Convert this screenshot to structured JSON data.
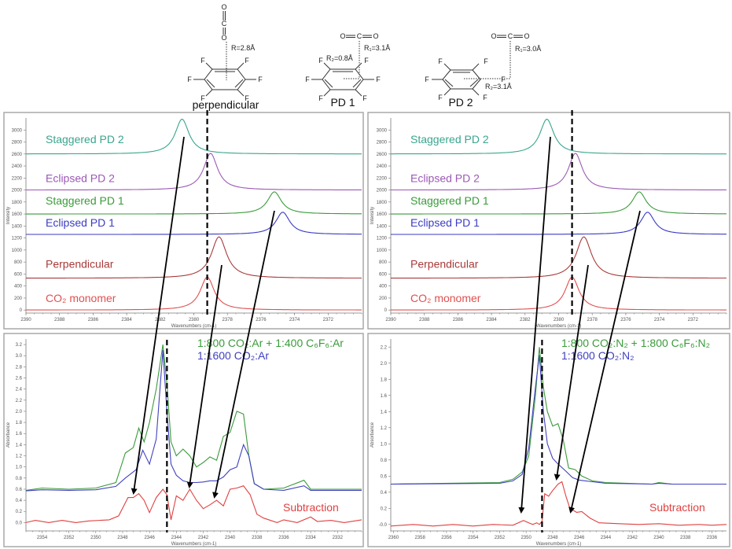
{
  "structures": [
    {
      "id": "perpendicular",
      "title": "perpendicular",
      "labels": [
        "R=2.8Å"
      ],
      "atoms": {
        "F": "F",
        "O": "O",
        "C": "C"
      }
    },
    {
      "id": "pd1",
      "title": "PD 1",
      "labels": [
        "R₁=3.1Å",
        "R₂=0.8Å"
      ],
      "atoms": {
        "F": "F",
        "O": "O",
        "C": "C"
      }
    },
    {
      "id": "pd2",
      "title": "PD 2",
      "labels": [
        "R₁=3.0Å",
        "R₂=3.1Å"
      ],
      "atoms": {
        "F": "F",
        "O": "O",
        "C": "C"
      }
    }
  ],
  "colors": {
    "staggered_pd2": "#3aa58e",
    "eclipsed_pd2": "#9b59b6",
    "staggered_pd1": "#3a9b3a",
    "eclipsed_pd1": "#3b3bc4",
    "perpendicular": "#a83a3a",
    "co2_monomer": "#e05050",
    "mix": "#3a9b3a",
    "ref": "#4040c0",
    "subtraction": "#e04040"
  },
  "chart_data": [
    {
      "id": "top-left",
      "type": "line",
      "title": "",
      "xlabel": "Wavenumbers (cm-1)",
      "ylabel": "Intensity",
      "xlim": [
        2390,
        2370
      ],
      "ylim": [
        -50,
        3200
      ],
      "xticks": [
        2390,
        2388,
        2386,
        2384,
        2382,
        2380,
        2378,
        2376,
        2374,
        2372
      ],
      "yticks": [
        0,
        200,
        400,
        600,
        800,
        1000,
        1200,
        1400,
        1600,
        1800,
        2000,
        2200,
        2400,
        2600,
        2800,
        3000
      ],
      "grid": false,
      "series": [
        {
          "name": "Staggered PD 2",
          "color_key": "staggered_pd2",
          "baseline": 2600,
          "peak_x": 2380.7,
          "peak_height": 580,
          "width": 0.5
        },
        {
          "name": "Eclipsed PD 2",
          "color_key": "eclipsed_pd2",
          "baseline": 2000,
          "peak_x": 2379.0,
          "peak_height": 610,
          "width": 0.5
        },
        {
          "name": "Staggered PD 1",
          "color_key": "staggered_pd1",
          "baseline": 1600,
          "peak_x": 2375.2,
          "peak_height": 370,
          "width": 0.5
        },
        {
          "name": "Eclipsed PD 1",
          "color_key": "eclipsed_pd1",
          "baseline": 1260,
          "peak_x": 2374.7,
          "peak_height": 370,
          "width": 0.5
        },
        {
          "name": "Perpendicular",
          "color_key": "perpendicular",
          "baseline": 530,
          "peak_x": 2378.5,
          "peak_height": 690,
          "width": 0.55
        },
        {
          "name": "CO₂ monomer",
          "color_key": "co2_monomer",
          "baseline": 0,
          "peak_x": 2379.2,
          "peak_height": 550,
          "width": 0.5
        }
      ],
      "reference_line_x": 2379.2
    },
    {
      "id": "top-right",
      "type": "line",
      "title": "",
      "xlabel": "Wavenumbers (cm-1)",
      "ylabel": "Intensity",
      "xlim": [
        2390,
        2370
      ],
      "ylim": [
        -50,
        3200
      ],
      "xticks": [
        2390,
        2388,
        2386,
        2384,
        2382,
        2380,
        2378,
        2376,
        2374,
        2372
      ],
      "yticks": [
        0,
        200,
        400,
        600,
        800,
        1000,
        1200,
        1400,
        1600,
        1800,
        2000,
        2200,
        2400,
        2600,
        2800,
        3000
      ],
      "grid": false,
      "series": [
        {
          "name": "Staggered PD 2",
          "color_key": "staggered_pd2",
          "baseline": 2600,
          "peak_x": 2380.7,
          "peak_height": 580,
          "width": 0.5
        },
        {
          "name": "Eclipsed PD 2",
          "color_key": "eclipsed_pd2",
          "baseline": 2000,
          "peak_x": 2379.0,
          "peak_height": 610,
          "width": 0.5
        },
        {
          "name": "Staggered PD 1",
          "color_key": "staggered_pd1",
          "baseline": 1600,
          "peak_x": 2375.2,
          "peak_height": 370,
          "width": 0.5
        },
        {
          "name": "Eclipsed PD 1",
          "color_key": "eclipsed_pd1",
          "baseline": 1260,
          "peak_x": 2374.7,
          "peak_height": 370,
          "width": 0.5
        },
        {
          "name": "Perpendicular",
          "color_key": "perpendicular",
          "baseline": 530,
          "peak_x": 2378.5,
          "peak_height": 690,
          "width": 0.55
        },
        {
          "name": "CO₂ monomer",
          "color_key": "co2_monomer",
          "baseline": 0,
          "peak_x": 2379.2,
          "peak_height": 550,
          "width": 0.5
        }
      ],
      "reference_line_x": 2379.2
    },
    {
      "id": "bottom-left",
      "type": "line",
      "title": "",
      "xlabel": "Wavenumbers (cm-1)",
      "ylabel": "Absorbance",
      "xlim": [
        2355.2,
        2330.2
      ],
      "ylim": [
        -0.15,
        3.3
      ],
      "xticks": [
        2354,
        2352,
        2350,
        2348,
        2346,
        2344,
        2342,
        2340,
        2338,
        2336,
        2334,
        2332
      ],
      "yticks": [
        0.0,
        0.2,
        0.4,
        0.6,
        0.8,
        1.0,
        1.2,
        1.4,
        1.6,
        1.8,
        2.0,
        2.2,
        2.4,
        2.6,
        2.8,
        3.0,
        3.2
      ],
      "ytick_format": "fixed1",
      "grid": false,
      "legend": [
        {
          "text": "1:800 CO₂:Ar + 1:400 C₆F₆:Ar",
          "color_key": "mix"
        },
        {
          "text": "1:1600 CO₂:Ar",
          "color_key": "ref"
        }
      ],
      "series": [
        {
          "name": "1:800 CO₂:Ar + 1:400 C₆F₆:Ar",
          "color_key": "mix",
          "x": [
            2355.2,
            2354,
            2352,
            2350,
            2348.5,
            2347.8,
            2347.2,
            2346.8,
            2346.4,
            2346.0,
            2345.5,
            2345.0,
            2344.7,
            2344.4,
            2344.0,
            2343.5,
            2343.0,
            2342.5,
            2342.0,
            2341.5,
            2341.0,
            2340.5,
            2340.0,
            2339.5,
            2339.0,
            2338.6,
            2338.2,
            2337.5,
            2336,
            2334.5,
            2334.0,
            2333.5,
            2332,
            2330.2
          ],
          "y": [
            0.58,
            0.62,
            0.6,
            0.62,
            0.72,
            1.25,
            1.35,
            1.7,
            1.45,
            1.8,
            2.4,
            3.2,
            2.5,
            1.45,
            1.2,
            1.32,
            1.2,
            1.0,
            1.08,
            1.18,
            1.12,
            1.55,
            1.62,
            2.0,
            1.95,
            1.2,
            0.7,
            0.6,
            0.62,
            0.76,
            0.6,
            0.6,
            0.6,
            0.6
          ]
        },
        {
          "name": "1:1600 CO₂:Ar",
          "color_key": "ref",
          "x": [
            2355.2,
            2354,
            2352,
            2350,
            2348.5,
            2347.8,
            2347.0,
            2346.5,
            2346.0,
            2345.5,
            2345.0,
            2344.7,
            2344.4,
            2344.0,
            2343.5,
            2343.0,
            2342.5,
            2342.0,
            2341.5,
            2341.0,
            2340.5,
            2340.0,
            2339.5,
            2339.0,
            2338.6,
            2338.2,
            2337.5,
            2336,
            2334.5,
            2334.0,
            2333.5,
            2332,
            2330.2
          ],
          "y": [
            0.57,
            0.59,
            0.58,
            0.59,
            0.65,
            0.8,
            0.95,
            1.3,
            1.05,
            1.5,
            3.1,
            2.0,
            1.05,
            0.85,
            0.75,
            0.72,
            0.72,
            0.73,
            0.75,
            0.75,
            0.82,
            0.95,
            1.0,
            1.4,
            1.2,
            0.7,
            0.6,
            0.58,
            0.66,
            0.58,
            0.58,
            0.58,
            0.58
          ]
        },
        {
          "name": "Subtraction",
          "color_key": "subtraction",
          "x": [
            2355.2,
            2354.5,
            2353.5,
            2352.5,
            2351.5,
            2350.5,
            2349,
            2348.3,
            2347.6,
            2347.2,
            2346.8,
            2346.4,
            2346.0,
            2345.5,
            2345.0,
            2344.7,
            2344.4,
            2344.0,
            2343.5,
            2343.0,
            2342.5,
            2342.0,
            2341.5,
            2341.0,
            2340.5,
            2340.0,
            2339.5,
            2339.0,
            2338.5,
            2338.0,
            2337.5,
            2336.5,
            2336,
            2335,
            2334,
            2333.5,
            2332.5,
            2331.5,
            2330.2
          ],
          "y": [
            0.0,
            0.04,
            0.0,
            0.04,
            0.0,
            0.03,
            0.05,
            0.12,
            0.45,
            0.45,
            0.52,
            0.4,
            0.18,
            0.45,
            0.6,
            0.5,
            0.05,
            0.48,
            0.4,
            0.6,
            0.4,
            0.25,
            0.32,
            0.4,
            0.3,
            0.6,
            0.62,
            0.66,
            0.5,
            0.15,
            0.08,
            0.0,
            0.05,
            0.0,
            0.1,
            0.02,
            0.04,
            0.0,
            0.05
          ]
        }
      ],
      "reference_line_x": 2344.7,
      "annotation": "Subtraction"
    },
    {
      "id": "bottom-right",
      "type": "line",
      "title": "",
      "xlabel": "Wavenumbers (cm-1)",
      "ylabel": "Absorbance",
      "xlim": [
        2360.2,
        2334.9
      ],
      "ylim": [
        -0.08,
        2.3
      ],
      "xticks": [
        2360,
        2358,
        2356,
        2354,
        2352,
        2350,
        2348,
        2346,
        2344,
        2342,
        2340,
        2338,
        2336
      ],
      "yticks": [
        0.0,
        0.2,
        0.4,
        0.6,
        0.8,
        1.0,
        1.2,
        1.4,
        1.6,
        1.8,
        2.0,
        2.2
      ],
      "ytick_format": "fixed1",
      "ytick_zero_label": "-0.0",
      "grid": false,
      "legend": [
        {
          "text": "1:800 CO₂:N₂ + 1:800 C₆F₆:N₂",
          "color_key": "mix"
        },
        {
          "text": "1:1600 CO₂:N₂",
          "color_key": "ref"
        }
      ],
      "series": [
        {
          "name": "1:800 CO₂:N₂ + 1:800 C₆F₆:N₂",
          "color_key": "mix",
          "x": [
            2360.2,
            2352,
            2351,
            2350.3,
            2349.8,
            2349.3,
            2349.0,
            2348.7,
            2348.4,
            2348.0,
            2347.6,
            2347.2,
            2346.8,
            2346.3,
            2345.8,
            2345.0,
            2344,
            2340.5,
            2340,
            2339,
            2334.9
          ],
          "y": [
            0.5,
            0.52,
            0.56,
            0.65,
            0.85,
            1.6,
            2.2,
            1.7,
            1.4,
            1.22,
            1.25,
            1.05,
            0.7,
            0.68,
            0.6,
            0.54,
            0.52,
            0.5,
            0.52,
            0.5,
            0.5
          ]
        },
        {
          "name": "1:1600 CO₂:N₂",
          "color_key": "ref",
          "x": [
            2360.2,
            2352,
            2351,
            2350.3,
            2349.8,
            2349.3,
            2349.0,
            2348.7,
            2348.4,
            2348.0,
            2347.6,
            2347.0,
            2346.5,
            2346.0,
            2345.0,
            2344,
            2340.5,
            2340,
            2339,
            2334.9
          ],
          "y": [
            0.5,
            0.51,
            0.54,
            0.62,
            0.95,
            1.7,
            2.1,
            1.4,
            1.0,
            0.82,
            0.75,
            0.66,
            0.58,
            0.55,
            0.53,
            0.51,
            0.5,
            0.51,
            0.5,
            0.5
          ]
        },
        {
          "name": "Subtraction",
          "color_key": "subtraction",
          "x": [
            2360.2,
            2358.5,
            2357,
            2355.5,
            2354,
            2352.5,
            2351,
            2350.2,
            2349.8,
            2349.5,
            2349.2,
            2349.0,
            2348.8,
            2348.6,
            2348.3,
            2348.0,
            2347.6,
            2347.3,
            2347.0,
            2346.7,
            2346.2,
            2345.8,
            2345.2,
            2344.5,
            2343,
            2341.5,
            2340,
            2338.5,
            2337,
            2336,
            2334.9
          ],
          "y": [
            -0.02,
            0.0,
            -0.02,
            0.0,
            -0.02,
            0.0,
            -0.01,
            0.05,
            0.02,
            0.0,
            0.02,
            0.0,
            0.04,
            0.38,
            0.35,
            0.42,
            0.5,
            0.53,
            0.35,
            0.2,
            0.15,
            0.16,
            0.08,
            0.02,
            0.01,
            0.0,
            0.01,
            -0.01,
            0.0,
            -0.01,
            0.0
          ]
        }
      ],
      "reference_line_x": 2348.8,
      "annotation": "Subtraction"
    }
  ]
}
